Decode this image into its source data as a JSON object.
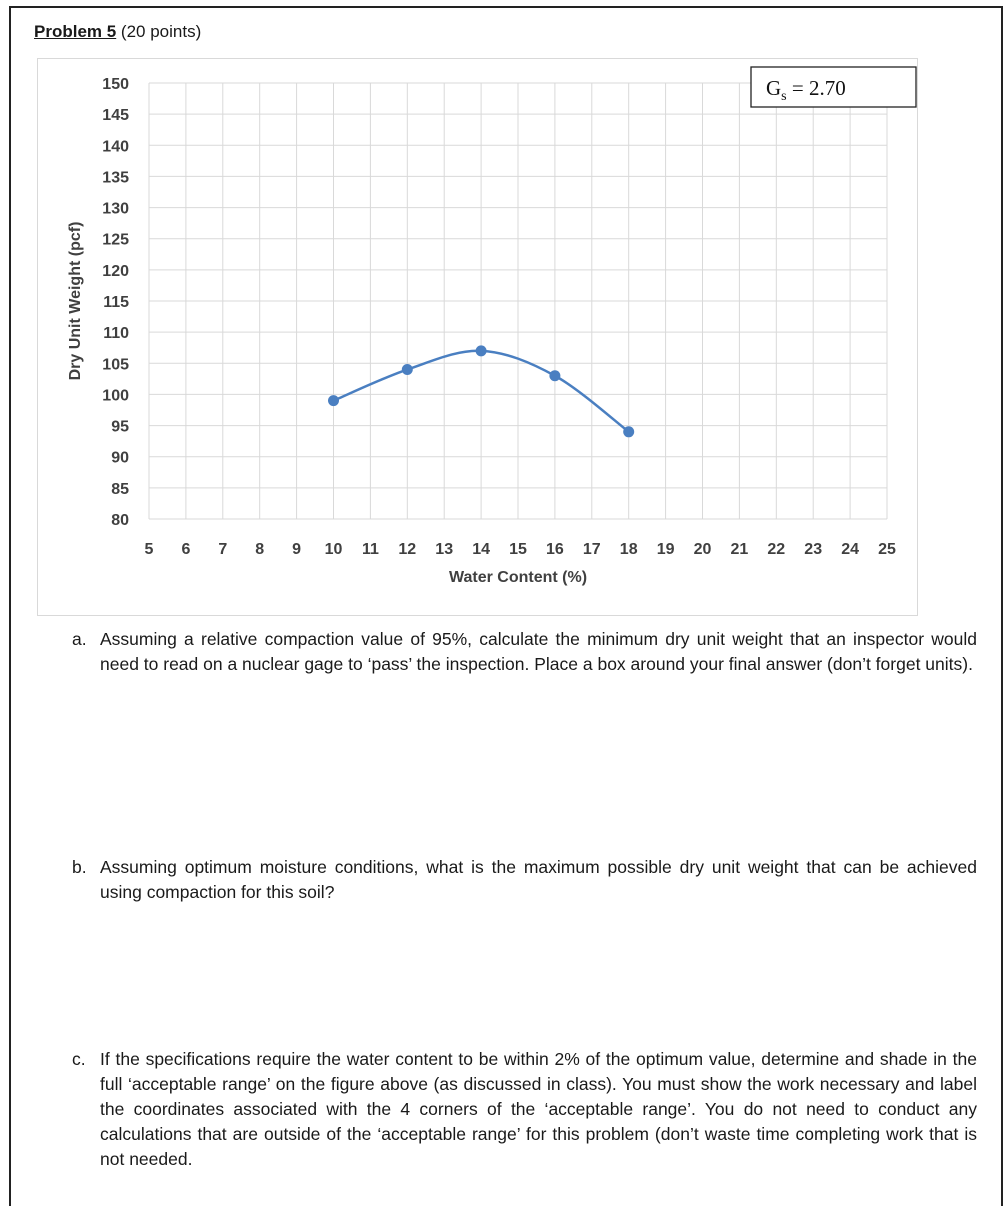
{
  "problem": {
    "label": "Problem 5",
    "points": " (20 points)"
  },
  "chart_data": {
    "type": "line",
    "title": "",
    "xlabel": "Water Content (%)",
    "ylabel": "Dry Unit Weight (pcf)",
    "xlim": [
      5,
      25
    ],
    "ylim": [
      80,
      150
    ],
    "xticks": [
      5,
      6,
      7,
      8,
      9,
      10,
      11,
      12,
      13,
      14,
      15,
      16,
      17,
      18,
      19,
      20,
      21,
      22,
      23,
      24,
      25
    ],
    "yticks": [
      80,
      85,
      90,
      95,
      100,
      105,
      110,
      115,
      120,
      125,
      130,
      135,
      140,
      145,
      150
    ],
    "grid": true,
    "legend": "none",
    "annotation": {
      "text": "Gs = 2.70",
      "prefix": "G",
      "subscript": "s",
      "suffix": " = 2.70",
      "placement": "top-right"
    },
    "series": [
      {
        "color": "#4a7fc1",
        "smooth": true,
        "x": [
          10,
          12,
          14,
          16,
          18
        ],
        "y": [
          99,
          104,
          107,
          103,
          94
        ]
      }
    ]
  },
  "questions": [
    {
      "letter": "a.",
      "text": "Assuming a relative compaction value of 95%, calculate the minimum dry unit weight that an inspector would need to read on a nuclear gage to ‘pass’ the inspection.  Place a box around your final answer (don’t forget units)."
    },
    {
      "letter": "b.",
      "text": "Assuming optimum moisture conditions, what is the maximum possible dry unit weight that can be achieved using compaction for this soil?"
    },
    {
      "letter": "c.",
      "text": "If the specifications require the water content to be within 2% of the optimum value, determine and shade in the full ‘acceptable range’ on the figure above (as discussed in class).  You must show the work necessary and label the coordinates associated with the 4 corners of the ‘acceptable range’.  You do not need to conduct any calculations that are outside of the ‘acceptable range’ for this problem (don’t waste time completing work that is not needed."
    }
  ]
}
